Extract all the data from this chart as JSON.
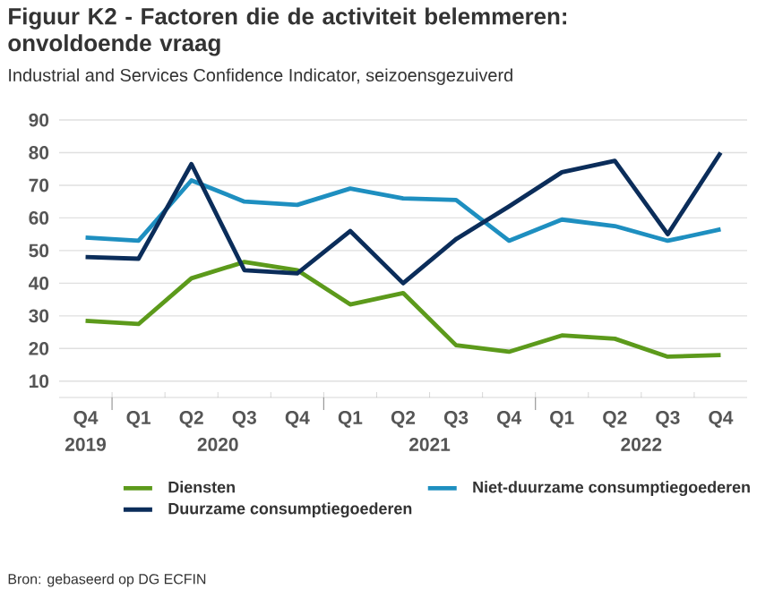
{
  "chart_data": {
    "type": "line",
    "title": "Figuur K2 - Factoren die de activiteit belemmeren: onvoldoende vraag",
    "subtitle": "Industrial and Services Confidence Indicator, seizoensgezuiverd",
    "categories": [
      "Q4",
      "Q1",
      "Q2",
      "Q3",
      "Q4",
      "Q1",
      "Q2",
      "Q3",
      "Q4",
      "Q1",
      "Q2",
      "Q3",
      "Q4"
    ],
    "series": [
      {
        "name": "Diensten",
        "color": "#5c9a1b",
        "values": [
          28.5,
          27.5,
          41.5,
          46.5,
          44,
          33.5,
          37,
          21,
          19,
          24,
          23,
          17.5,
          18
        ]
      },
      {
        "name": "Niet-duurzame consumptiegoederen",
        "color": "#1e8fc0",
        "values": [
          54,
          53,
          71.5,
          65,
          64,
          69,
          66,
          65.5,
          53,
          59.5,
          57.5,
          53,
          56.5
        ]
      },
      {
        "name": "Duurzame consumptiegoederen",
        "color": "#0b2d5a",
        "values": [
          48,
          47.5,
          76.5,
          44,
          43,
          56,
          40,
          53.5,
          63.5,
          74,
          77.5,
          55,
          80
        ]
      }
    ],
    "ylim": [
      5,
      90
    ],
    "yticks": [
      10,
      20,
      30,
      40,
      50,
      60,
      70,
      80,
      90
    ],
    "grid": "y",
    "legend": "bottom",
    "marker": "none",
    "line_style": "solid",
    "annotations": [
      "2019",
      "2020",
      "2021",
      "2022",
      "Bron: gebaseerd op DG ECFIN"
    ]
  }
}
